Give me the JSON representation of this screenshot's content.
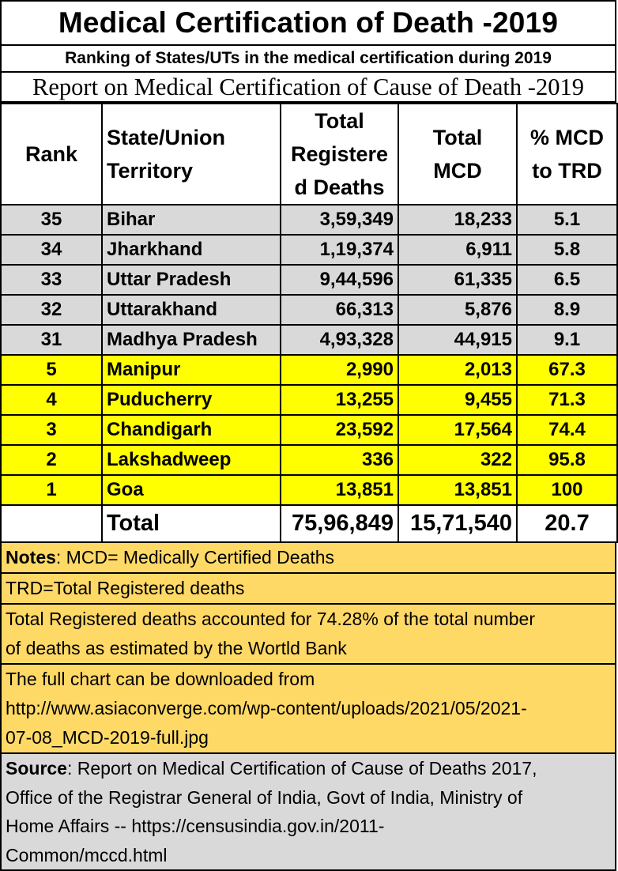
{
  "title": "Medical Certification  of Death -2019",
  "subtitle": "Ranking of States/UTs in the medical certification during 2019",
  "report_title": "Report on Medical Certification of Cause of Death -2019",
  "table": {
    "headers": {
      "rank": "Rank",
      "state_line1": "State/Union",
      "state_line2": "Territory",
      "trd_line1": "Total",
      "trd_line2": "Registere",
      "trd_line3": "d Deaths",
      "mcd_line1": "Total",
      "mcd_line2": "MCD",
      "pct_line1": "% MCD",
      "pct_line2": "to TRD"
    },
    "rows": [
      {
        "rank": "35",
        "state": "Bihar",
        "trd": "3,59,349",
        "mcd": "18,233",
        "pct": "5.1",
        "highlight": "grey"
      },
      {
        "rank": "34",
        "state": "Jharkhand",
        "trd": "1,19,374",
        "mcd": "6,911",
        "pct": "5.8",
        "highlight": "grey"
      },
      {
        "rank": "33",
        "state": "Uttar Pradesh",
        "trd": "9,44,596",
        "mcd": "61,335",
        "pct": "6.5",
        "highlight": "grey"
      },
      {
        "rank": "32",
        "state": "Uttarakhand",
        "trd": "66,313",
        "mcd": "5,876",
        "pct": "8.9",
        "highlight": "grey"
      },
      {
        "rank": "31",
        "state": "Madhya Pradesh",
        "trd": "4,93,328",
        "mcd": "44,915",
        "pct": "9.1",
        "highlight": "grey"
      },
      {
        "rank": "5",
        "state": "Manipur",
        "trd": "2,990",
        "mcd": "2,013",
        "pct": "67.3",
        "highlight": "yellow"
      },
      {
        "rank": "4",
        "state": "Puducherry",
        "trd": "13,255",
        "mcd": "9,455",
        "pct": "71.3",
        "highlight": "yellow"
      },
      {
        "rank": "3",
        "state": "Chandigarh",
        "trd": "23,592",
        "mcd": "17,564",
        "pct": "74.4",
        "highlight": "yellow"
      },
      {
        "rank": "2",
        "state": "Lakshadweep",
        "trd": "336",
        "mcd": "322",
        "pct": "95.8",
        "highlight": "yellow"
      },
      {
        "rank": "1",
        "state": "Goa",
        "trd": "13,851",
        "mcd": "13,851",
        "pct": "100",
        "highlight": "yellow"
      }
    ],
    "total": {
      "label": "Total",
      "trd": "75,96,849",
      "mcd": "15,71,540",
      "pct": "20.7"
    }
  },
  "notes": {
    "label": "Notes",
    "mcd_def": ": MCD= Medically Certified Deaths",
    "trd_def": "TRD=Total Registered deaths",
    "coverage_line1": "Total Registered deaths accounted for 74.28% of the total number",
    "coverage_line2": "of deaths as estimated by the Wortld Bank",
    "download_line1": "The full chart can be downloaded from",
    "download_line2": "http://www.asiaconverge.com/wp-content/uploads/2021/05/2021-",
    "download_line3": "07-08_MCD-2019-full.jpg"
  },
  "source": {
    "label": "Source",
    "line1": ": Report on Medical Certification of Cause of Deaths   2017,",
    "line2": "Office of the Registrar General of India, Govt of India, Ministry of",
    "line3": "Home Affairs -- https://censusindia.gov.in/2011-",
    "line4": "Common/mccd.html"
  },
  "colors": {
    "grey_rows": "#d9d9d9",
    "yellow_rows": "#ffff00",
    "notes_bg": "#ffd966",
    "source_bg": "#d9d9d9"
  }
}
